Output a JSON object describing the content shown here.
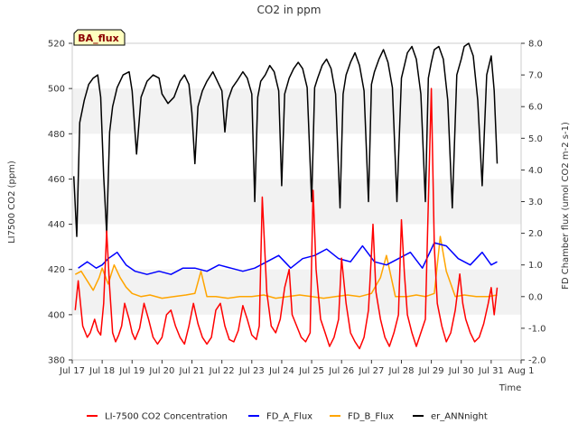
{
  "chart_data": {
    "type": "line",
    "title": "CO2 in ppm",
    "xlabel": "Time",
    "ylabel_left": "LI7500 CO2 (ppm)",
    "ylabel_right": "FD Chamber flux (umol CO2 m-2 s-1)",
    "badge": "BA_flux",
    "x_ticks": [
      "Jul 17",
      "Jul 18",
      "Jul 19",
      "Jul 20",
      "Jul 21",
      "Jul 22",
      "Jul 23",
      "Jul 24",
      "Jul 25",
      "Jul 26",
      "Jul 27",
      "Jul 28",
      "Jul 29",
      "Jul 30",
      "Jul 31",
      "Aug 1"
    ],
    "x_range_days": [
      17,
      32
    ],
    "y_left_range": [
      380,
      520
    ],
    "y_left_ticks": [
      "380",
      "400",
      "420",
      "440",
      "460",
      "480",
      "500",
      "520"
    ],
    "y_right_range": [
      -2.0,
      8.0
    ],
    "y_right_ticks": [
      "-2.0",
      "-1.0",
      "0.0",
      "1.0",
      "2.0",
      "3.0",
      "4.0",
      "5.0",
      "6.0",
      "7.0",
      "8.0"
    ],
    "grid_bands": [
      [
        400,
        420
      ],
      [
        440,
        460
      ],
      [
        480,
        500
      ]
    ],
    "legend_position": "bottom",
    "series": [
      {
        "name": "LI-7500 CO2 Concentration",
        "axis": "left",
        "color": "#ff0000",
        "x": [
          17.1,
          17.2,
          17.35,
          17.5,
          17.6,
          17.75,
          17.85,
          17.95,
          18.05,
          18.15,
          18.25,
          18.35,
          18.45,
          18.55,
          18.65,
          18.75,
          18.9,
          19.0,
          19.1,
          19.25,
          19.4,
          19.55,
          19.7,
          19.85,
          20.0,
          20.15,
          20.3,
          20.45,
          20.6,
          20.75,
          20.9,
          21.05,
          21.2,
          21.35,
          21.5,
          21.65,
          21.8,
          21.95,
          22.1,
          22.25,
          22.4,
          22.55,
          22.7,
          22.85,
          23.0,
          23.15,
          23.25,
          23.35,
          23.5,
          23.65,
          23.8,
          23.95,
          24.1,
          24.25,
          24.35,
          24.5,
          24.65,
          24.8,
          24.95,
          25.05,
          25.15,
          25.3,
          25.45,
          25.6,
          25.75,
          25.9,
          26.0,
          26.15,
          26.3,
          26.45,
          26.6,
          26.75,
          26.9,
          27.05,
          27.15,
          27.3,
          27.45,
          27.6,
          27.75,
          27.9,
          28.0,
          28.1,
          28.2,
          28.35,
          28.5,
          28.65,
          28.8,
          28.9,
          29.0,
          29.1,
          29.2,
          29.35,
          29.5,
          29.65,
          29.8,
          29.95,
          30.05,
          30.15,
          30.3,
          30.45,
          30.6,
          30.75,
          30.9,
          31.0,
          31.1,
          31.2
        ],
        "values": [
          402,
          415,
          395,
          390,
          392,
          398,
          393,
          391,
          405,
          437,
          412,
          392,
          388,
          391,
          395,
          405,
          398,
          392,
          389,
          394,
          405,
          398,
          390,
          387,
          390,
          400,
          402,
          395,
          390,
          387,
          395,
          405,
          396,
          390,
          387,
          390,
          402,
          405,
          395,
          389,
          388,
          393,
          404,
          398,
          391,
          389,
          395,
          452,
          410,
          395,
          392,
          398,
          412,
          420,
          400,
          395,
          390,
          388,
          392,
          455,
          420,
          398,
          392,
          386,
          390,
          398,
          425,
          405,
          392,
          388,
          385,
          390,
          402,
          440,
          410,
          398,
          390,
          386,
          392,
          400,
          442,
          418,
          400,
          392,
          386,
          392,
          398,
          450,
          500,
          430,
          405,
          395,
          388,
          392,
          402,
          418,
          405,
          398,
          392,
          388,
          390,
          396,
          405,
          412,
          400,
          412
        ]
      },
      {
        "name": "FD_A_Flux",
        "axis": "right",
        "color": "#0000ff",
        "x": [
          17.2,
          17.5,
          17.8,
          18.0,
          18.2,
          18.5,
          18.8,
          19.1,
          19.5,
          19.9,
          20.3,
          20.7,
          21.1,
          21.5,
          21.9,
          22.3,
          22.7,
          23.1,
          23.5,
          23.9,
          24.3,
          24.7,
          25.1,
          25.5,
          25.9,
          26.3,
          26.7,
          27.1,
          27.5,
          27.9,
          28.3,
          28.7,
          29.1,
          29.5,
          29.9,
          30.3,
          30.7,
          31.0,
          31.2
        ],
        "values": [
          0.9,
          1.1,
          0.9,
          1.0,
          1.2,
          1.4,
          1.0,
          0.8,
          0.7,
          0.8,
          0.7,
          0.9,
          0.9,
          0.8,
          1.0,
          0.9,
          0.8,
          0.9,
          1.1,
          1.3,
          0.9,
          1.2,
          1.3,
          1.5,
          1.2,
          1.1,
          1.6,
          1.1,
          1.0,
          1.2,
          1.4,
          0.9,
          1.7,
          1.6,
          1.2,
          1.0,
          1.4,
          1.0,
          1.1
        ]
      },
      {
        "name": "FD_B_Flux",
        "axis": "right",
        "color": "#ffa500",
        "x": [
          17.1,
          17.3,
          17.5,
          17.7,
          17.9,
          18.0,
          18.2,
          18.4,
          18.6,
          18.8,
          19.0,
          19.3,
          19.6,
          20.0,
          20.4,
          20.8,
          21.1,
          21.3,
          21.5,
          21.8,
          22.2,
          22.6,
          23.0,
          23.4,
          23.8,
          24.2,
          24.6,
          25.0,
          25.4,
          25.8,
          26.2,
          26.6,
          27.0,
          27.3,
          27.5,
          27.8,
          28.2,
          28.5,
          28.8,
          29.1,
          29.3,
          29.5,
          29.8,
          30.1,
          30.5,
          30.9,
          31.2
        ],
        "values": [
          0.7,
          0.8,
          0.5,
          0.2,
          0.6,
          0.9,
          0.4,
          1.0,
          0.6,
          0.3,
          0.1,
          0.0,
          0.05,
          -0.05,
          0.0,
          0.05,
          0.1,
          0.8,
          0.0,
          0.0,
          -0.05,
          0.0,
          0.0,
          0.05,
          -0.05,
          0.0,
          0.05,
          0.0,
          -0.05,
          0.0,
          0.05,
          0.0,
          0.1,
          0.6,
          1.3,
          0.0,
          0.0,
          0.05,
          0.0,
          0.1,
          1.9,
          0.8,
          0.0,
          0.05,
          0.0,
          0.0,
          0.05
        ]
      },
      {
        "name": "er_ANNnight",
        "axis": "right",
        "color": "#000000",
        "x": [
          17.05,
          17.15,
          17.25,
          17.4,
          17.55,
          17.7,
          17.85,
          17.95,
          18.05,
          18.15,
          18.25,
          18.35,
          18.5,
          18.7,
          18.9,
          19.0,
          19.15,
          19.3,
          19.5,
          19.7,
          19.9,
          20.0,
          20.2,
          20.4,
          20.6,
          20.75,
          20.9,
          21.0,
          21.1,
          21.2,
          21.35,
          21.5,
          21.7,
          21.85,
          22.0,
          22.1,
          22.2,
          22.35,
          22.5,
          22.7,
          22.85,
          23.0,
          23.1,
          23.2,
          23.3,
          23.45,
          23.6,
          23.75,
          23.9,
          24.0,
          24.1,
          24.25,
          24.4,
          24.55,
          24.7,
          24.85,
          25.0,
          25.1,
          25.2,
          25.35,
          25.5,
          25.65,
          25.8,
          25.95,
          26.05,
          26.15,
          26.3,
          26.45,
          26.6,
          26.75,
          26.9,
          27.0,
          27.1,
          27.25,
          27.4,
          27.55,
          27.7,
          27.85,
          28.0,
          28.1,
          28.2,
          28.35,
          28.5,
          28.65,
          28.8,
          28.9,
          29.0,
          29.1,
          29.25,
          29.4,
          29.55,
          29.7,
          29.85,
          30.0,
          30.1,
          30.25,
          30.4,
          30.55,
          30.7,
          30.85,
          31.0,
          31.1,
          31.2
        ],
        "values": [
          3.8,
          1.9,
          5.5,
          6.2,
          6.7,
          6.9,
          7.0,
          6.3,
          3.8,
          2.0,
          5.2,
          6.0,
          6.6,
          7.0,
          7.1,
          6.5,
          4.5,
          6.3,
          6.8,
          7.0,
          6.9,
          6.4,
          6.1,
          6.3,
          6.8,
          7.0,
          6.7,
          5.8,
          4.2,
          6.0,
          6.5,
          6.8,
          7.1,
          6.8,
          6.5,
          5.2,
          6.2,
          6.6,
          6.8,
          7.1,
          6.9,
          6.4,
          3.0,
          6.3,
          6.8,
          7.0,
          7.3,
          7.1,
          6.5,
          3.5,
          6.4,
          6.9,
          7.2,
          7.4,
          7.2,
          6.6,
          3.0,
          6.6,
          6.9,
          7.3,
          7.5,
          7.2,
          6.4,
          2.8,
          6.4,
          7.0,
          7.4,
          7.7,
          7.3,
          6.5,
          3.0,
          6.7,
          7.1,
          7.5,
          7.8,
          7.4,
          6.6,
          3.0,
          6.9,
          7.3,
          7.7,
          7.9,
          7.5,
          6.4,
          3.0,
          6.9,
          7.4,
          7.8,
          7.9,
          7.5,
          6.2,
          2.8,
          7.0,
          7.5,
          7.9,
          8.0,
          7.6,
          6.2,
          3.5,
          7.0,
          7.6,
          6.5,
          4.2
        ]
      }
    ]
  }
}
